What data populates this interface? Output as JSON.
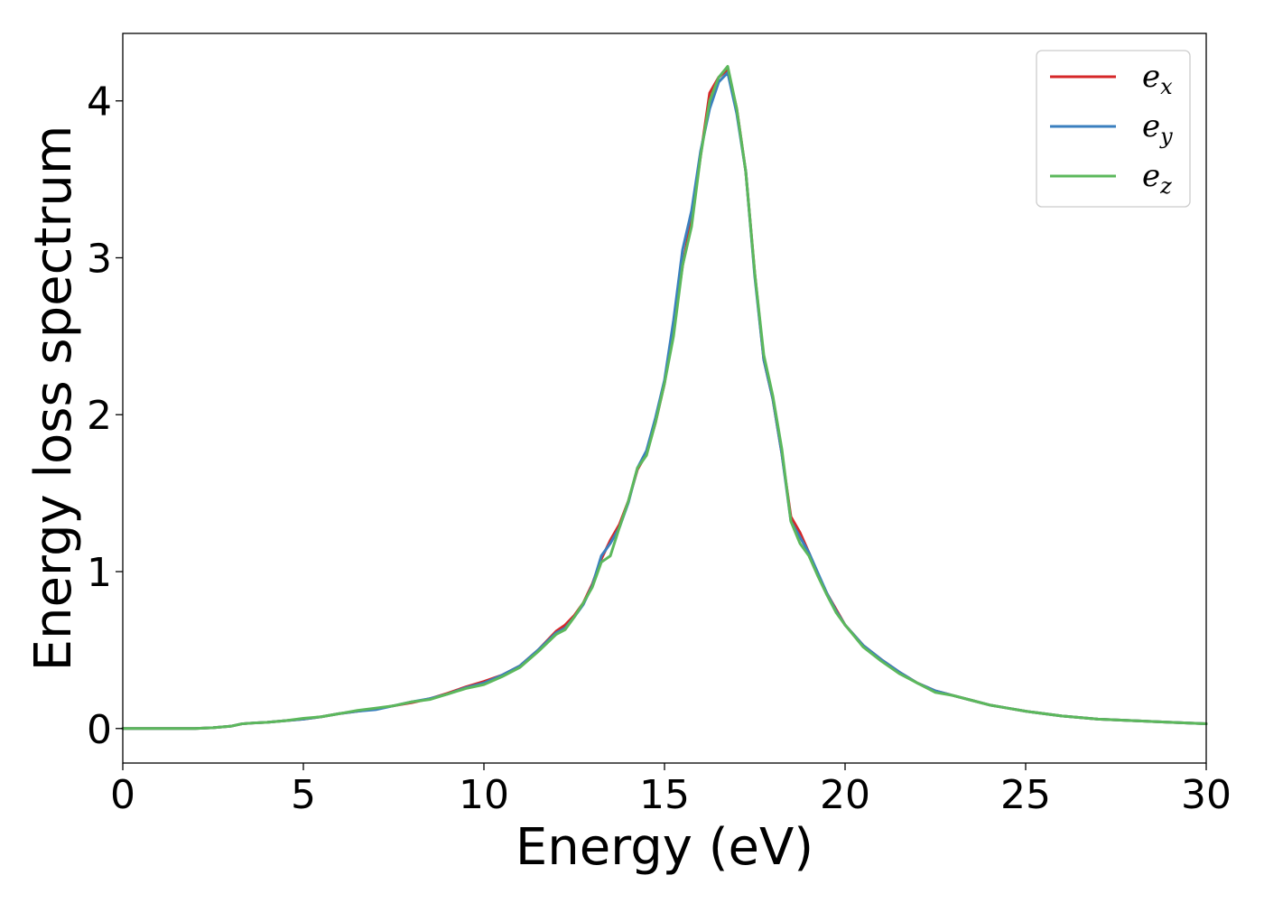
{
  "chart_data": {
    "type": "line",
    "title": "",
    "xlabel": "Energy (eV)",
    "ylabel": "Energy loss spectrum",
    "xlim": [
      0,
      30
    ],
    "ylim": [
      -0.22,
      4.43
    ],
    "xticks": [
      0,
      5,
      10,
      15,
      20,
      25,
      30
    ],
    "yticks": [
      0,
      1,
      2,
      3,
      4
    ],
    "grid": false,
    "legend_position": "top-right",
    "series": [
      {
        "name": "e_x",
        "label_base": "e",
        "label_sub": "x",
        "color": "#d62728",
        "x": [
          0,
          1,
          2,
          2.5,
          3,
          3.3,
          3.6,
          4,
          4.5,
          5,
          5.5,
          6,
          6.5,
          7,
          7.5,
          8,
          8.5,
          9,
          9.5,
          10,
          10.5,
          11,
          11.5,
          12,
          12.25,
          12.5,
          12.75,
          13,
          13.25,
          13.5,
          13.75,
          14,
          14.25,
          14.5,
          14.75,
          15,
          15.25,
          15.5,
          15.75,
          16,
          16.25,
          16.5,
          16.75,
          17,
          17.25,
          17.5,
          17.75,
          18,
          18.25,
          18.5,
          18.75,
          19,
          19.25,
          19.5,
          19.75,
          20,
          20.5,
          21,
          21.5,
          22,
          22.5,
          23,
          23.5,
          24,
          24.5,
          25,
          26,
          27,
          28,
          29,
          30
        ],
        "y": [
          0,
          0,
          0,
          0.005,
          0.015,
          0.03,
          0.035,
          0.04,
          0.05,
          0.06,
          0.075,
          0.095,
          0.11,
          0.125,
          0.145,
          0.165,
          0.19,
          0.225,
          0.265,
          0.3,
          0.34,
          0.4,
          0.5,
          0.62,
          0.66,
          0.72,
          0.8,
          0.92,
          1.08,
          1.2,
          1.3,
          1.45,
          1.65,
          1.75,
          1.95,
          2.2,
          2.55,
          2.95,
          3.25,
          3.65,
          4.05,
          4.15,
          4.2,
          3.95,
          3.55,
          2.9,
          2.35,
          2.1,
          1.75,
          1.35,
          1.25,
          1.12,
          0.98,
          0.86,
          0.76,
          0.66,
          0.53,
          0.44,
          0.36,
          0.29,
          0.24,
          0.21,
          0.18,
          0.15,
          0.13,
          0.11,
          0.08,
          0.06,
          0.05,
          0.04,
          0.03
        ]
      },
      {
        "name": "e_y",
        "label_base": "e",
        "label_sub": "y",
        "color": "#3a7fbf",
        "x": [
          0,
          1,
          2,
          2.5,
          3,
          3.3,
          3.6,
          4,
          4.5,
          5,
          5.5,
          6,
          6.5,
          7,
          7.5,
          8,
          8.5,
          9,
          9.5,
          10,
          10.5,
          11,
          11.5,
          12,
          12.25,
          12.5,
          12.75,
          13,
          13.25,
          13.5,
          13.75,
          14,
          14.25,
          14.5,
          14.75,
          15,
          15.25,
          15.5,
          15.75,
          16,
          16.25,
          16.5,
          16.75,
          17,
          17.25,
          17.5,
          17.75,
          18,
          18.25,
          18.5,
          18.75,
          19,
          19.25,
          19.5,
          19.75,
          20,
          20.5,
          21,
          21.5,
          22,
          22.5,
          23,
          23.5,
          24,
          24.5,
          25,
          26,
          27,
          28,
          29,
          30
        ],
        "y": [
          0,
          0,
          0,
          0.005,
          0.015,
          0.03,
          0.035,
          0.04,
          0.05,
          0.06,
          0.075,
          0.095,
          0.11,
          0.12,
          0.145,
          0.17,
          0.19,
          0.22,
          0.26,
          0.29,
          0.34,
          0.4,
          0.5,
          0.61,
          0.64,
          0.71,
          0.79,
          0.91,
          1.1,
          1.18,
          1.28,
          1.44,
          1.66,
          1.77,
          1.98,
          2.22,
          2.6,
          3.05,
          3.3,
          3.68,
          3.95,
          4.12,
          4.18,
          3.92,
          3.55,
          2.88,
          2.35,
          2.1,
          1.75,
          1.32,
          1.22,
          1.12,
          0.99,
          0.86,
          0.75,
          0.66,
          0.53,
          0.44,
          0.36,
          0.29,
          0.24,
          0.21,
          0.18,
          0.15,
          0.13,
          0.11,
          0.08,
          0.06,
          0.05,
          0.04,
          0.03
        ]
      },
      {
        "name": "e_z",
        "label_base": "e",
        "label_sub": "z",
        "color": "#5cb85c",
        "x": [
          0,
          1,
          2,
          2.5,
          3,
          3.3,
          3.6,
          4,
          4.5,
          5,
          5.5,
          6,
          6.5,
          7,
          7.5,
          8,
          8.5,
          9,
          9.5,
          10,
          10.5,
          11,
          11.5,
          12,
          12.25,
          12.5,
          12.75,
          13,
          13.25,
          13.5,
          13.75,
          14,
          14.25,
          14.5,
          14.75,
          15,
          15.25,
          15.5,
          15.75,
          16,
          16.25,
          16.5,
          16.75,
          17,
          17.25,
          17.5,
          17.75,
          18,
          18.25,
          18.5,
          18.75,
          19,
          19.25,
          19.5,
          19.75,
          20,
          20.5,
          21,
          21.5,
          22,
          22.5,
          23,
          23.5,
          24,
          24.5,
          25,
          26,
          27,
          28,
          29,
          30
        ],
        "y": [
          0,
          0,
          0,
          0.005,
          0.015,
          0.03,
          0.035,
          0.04,
          0.05,
          0.065,
          0.075,
          0.095,
          0.115,
          0.13,
          0.145,
          0.17,
          0.185,
          0.22,
          0.255,
          0.28,
          0.33,
          0.39,
          0.49,
          0.6,
          0.63,
          0.71,
          0.8,
          0.9,
          1.06,
          1.1,
          1.28,
          1.45,
          1.66,
          1.74,
          1.95,
          2.2,
          2.5,
          2.95,
          3.2,
          3.65,
          4.0,
          4.15,
          4.22,
          3.95,
          3.55,
          2.9,
          2.38,
          2.12,
          1.78,
          1.32,
          1.18,
          1.1,
          0.97,
          0.85,
          0.74,
          0.66,
          0.52,
          0.43,
          0.35,
          0.29,
          0.23,
          0.21,
          0.18,
          0.15,
          0.13,
          0.11,
          0.08,
          0.06,
          0.05,
          0.04,
          0.03
        ]
      }
    ]
  }
}
